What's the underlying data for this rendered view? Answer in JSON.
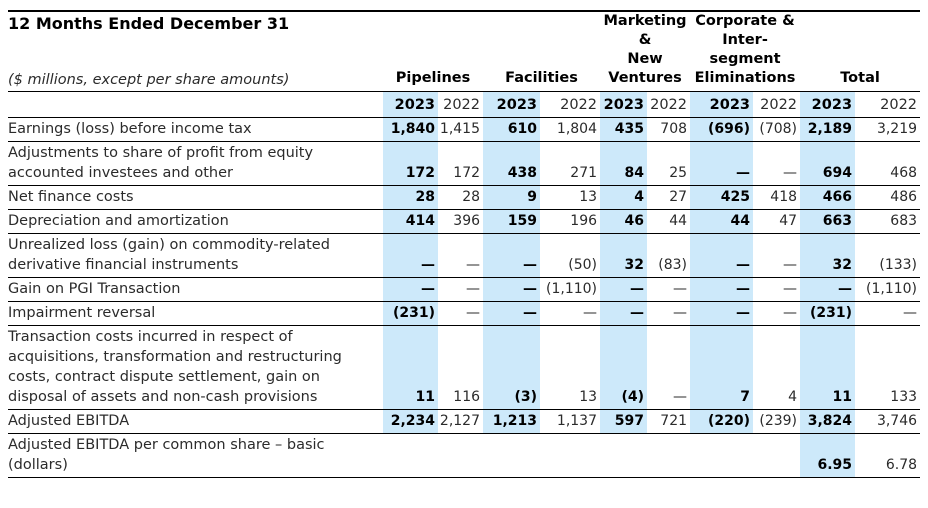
{
  "title": "12 Months Ended December 31",
  "units_note": "($ millions, except per share amounts)",
  "colors": {
    "highlight_2023": "#cde9fa",
    "border": "#000000",
    "text": "#2b2b2b"
  },
  "column_groups": [
    {
      "label": "Pipelines",
      "lines": [
        "Pipelines"
      ]
    },
    {
      "label": "Facilities",
      "lines": [
        "Facilities"
      ]
    },
    {
      "label": "Marketing & New Ventures",
      "lines": [
        "Marketing",
        "&",
        "New",
        "Ventures"
      ]
    },
    {
      "label": "Corporate & Inter-segment Eliminations",
      "lines": [
        "Corporate &",
        "Inter-",
        "segment",
        "Eliminations"
      ]
    },
    {
      "label": "Total",
      "lines": [
        "Total"
      ]
    }
  ],
  "years": [
    "2023",
    "2022"
  ],
  "rows": [
    {
      "label": "Earnings (loss) before income tax",
      "values": [
        "1,840",
        "1,415",
        "610",
        "1,804",
        "435",
        "708",
        "(696)",
        "(708)",
        "2,189",
        "3,219"
      ]
    },
    {
      "label": "Adjustments to share of profit from equity accounted investees and other",
      "values": [
        "172",
        "172",
        "438",
        "271",
        "84",
        "25",
        "—",
        "—",
        "694",
        "468"
      ]
    },
    {
      "label": "Net finance costs",
      "values": [
        "28",
        "28",
        "9",
        "13",
        "4",
        "27",
        "425",
        "418",
        "466",
        "486"
      ]
    },
    {
      "label": "Depreciation and amortization",
      "values": [
        "414",
        "396",
        "159",
        "196",
        "46",
        "44",
        "44",
        "47",
        "663",
        "683"
      ]
    },
    {
      "label": "Unrealized loss (gain) on commodity-related derivative financial instruments",
      "values": [
        "—",
        "—",
        "—",
        "(50)",
        "32",
        "(83)",
        "—",
        "—",
        "32",
        "(133)"
      ]
    },
    {
      "label": "Gain on PGI Transaction",
      "values": [
        "—",
        "—",
        "—",
        "(1,110)",
        "—",
        "—",
        "—",
        "—",
        "—",
        "(1,110)"
      ]
    },
    {
      "label": "Impairment reversal",
      "values": [
        "(231)",
        "—",
        "—",
        "—",
        "—",
        "—",
        "—",
        "—",
        "(231)",
        "—"
      ]
    },
    {
      "label": "Transaction costs incurred in respect of acquisitions, transformation and restructuring costs, contract dispute settlement, gain on disposal of assets and non-cash provisions",
      "values": [
        "11",
        "116",
        "(3)",
        "13",
        "(4)",
        "—",
        "7",
        "4",
        "11",
        "133"
      ]
    },
    {
      "label": "Adjusted EBITDA",
      "values": [
        "2,234",
        "2,127",
        "1,213",
        "1,137",
        "597",
        "721",
        "(220)",
        "(239)",
        "3,824",
        "3,746"
      ]
    },
    {
      "label": "Adjusted EBITDA per common share – basic (dollars)",
      "values": [
        "",
        "",
        "",
        "",
        "",
        "",
        "",
        "",
        "6.95",
        "6.78"
      ],
      "highlight_total_only": true
    }
  ]
}
